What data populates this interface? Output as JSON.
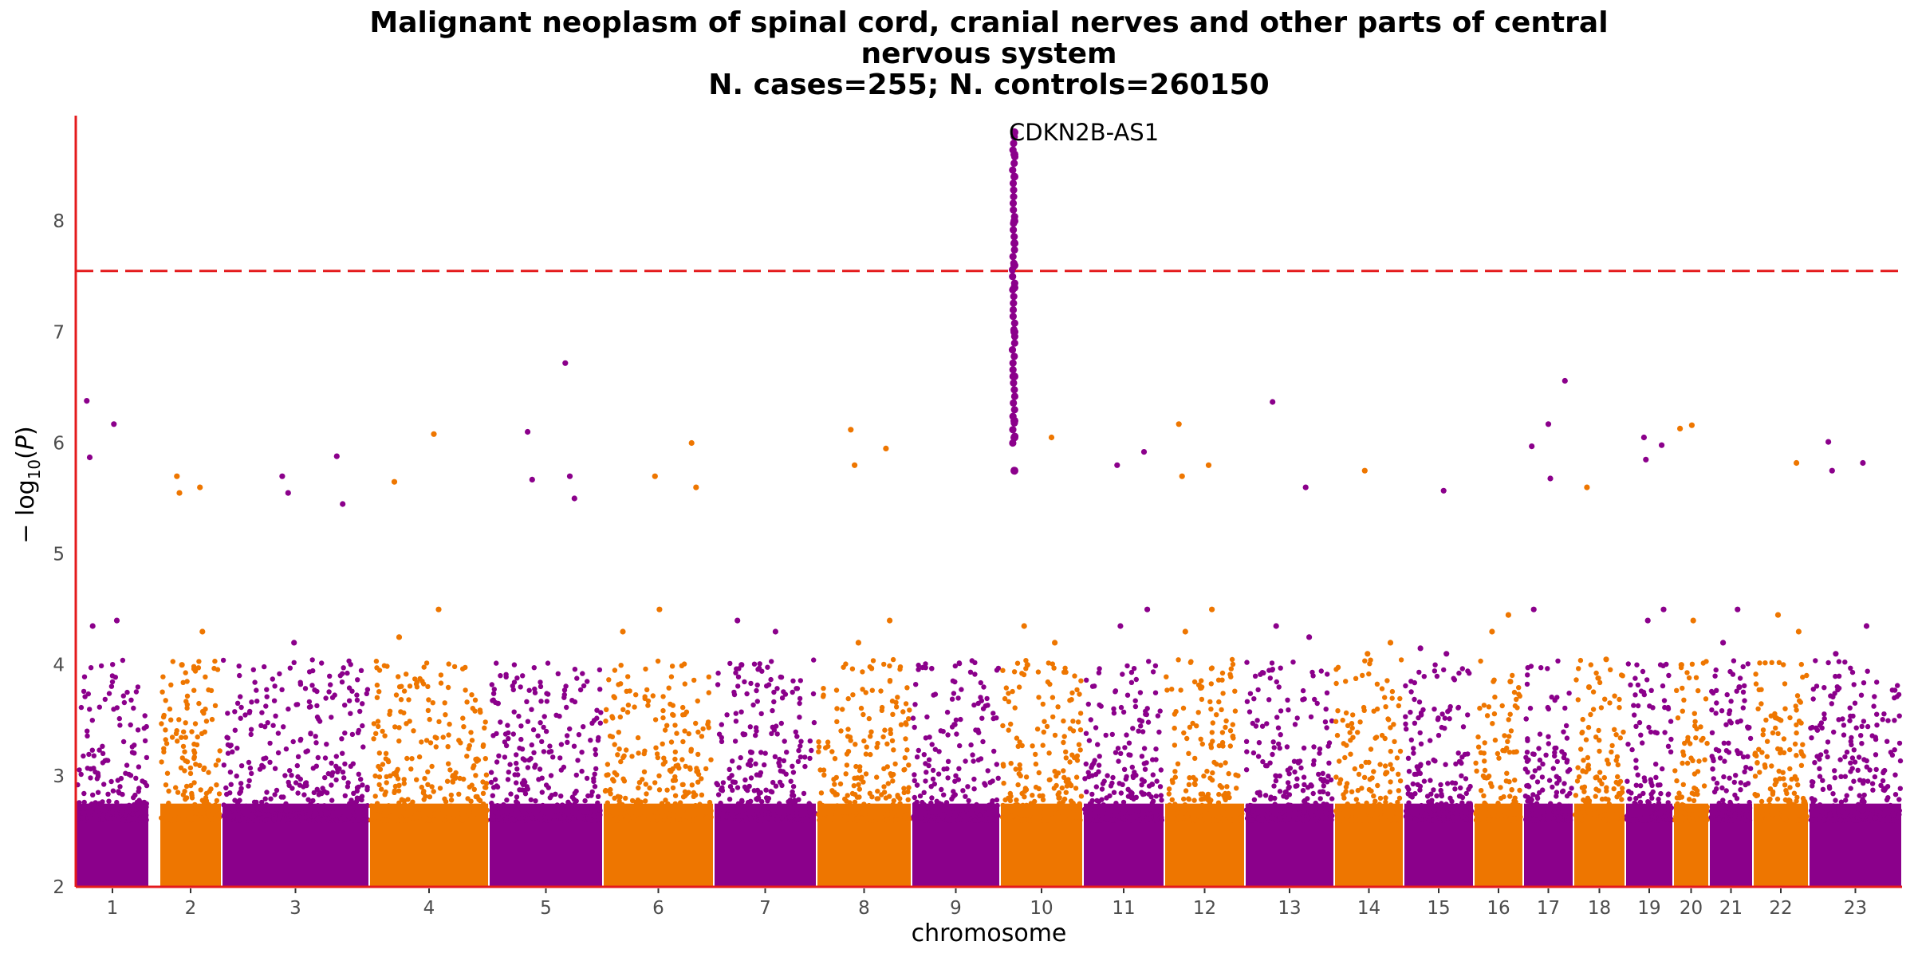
{
  "chart_data": {
    "type": "scatter",
    "subtype": "manhattan",
    "title_lines": [
      "Malignant neoplasm of spinal cord, cranial nerves and other parts of central",
      "nervous system",
      "N. cases=255; N. controls=260150"
    ],
    "xlabel": "chromosome",
    "ylabel": "−log10(P)",
    "ylim": [
      2,
      8.95
    ],
    "y_ticks": [
      2,
      3,
      4,
      5,
      6,
      7,
      8
    ],
    "significance_line": 7.55,
    "colors": {
      "odd": "#8b008b",
      "even": "#ee7600",
      "threshold": "#e41a1c",
      "axis": "#e41a1c"
    },
    "chromosomes": [
      {
        "label": "1",
        "peaks": [
          6.38,
          6.17,
          5.87,
          4.4,
          4.35
        ]
      },
      {
        "label": "2",
        "peaks": [
          5.7,
          5.6,
          5.55,
          4.3,
          4.0
        ]
      },
      {
        "label": "3",
        "peaks": [
          5.7,
          5.88,
          5.55,
          5.45,
          4.2
        ]
      },
      {
        "label": "4",
        "peaks": [
          6.08,
          5.65,
          4.5,
          4.25
        ]
      },
      {
        "label": "5",
        "peaks": [
          6.72,
          6.1,
          5.7,
          5.67,
          5.5
        ]
      },
      {
        "label": "6",
        "peaks": [
          6.0,
          5.7,
          5.6,
          4.5,
          4.3
        ]
      },
      {
        "label": "7",
        "peaks": [
          4.4,
          4.3,
          4.0
        ]
      },
      {
        "label": "8",
        "peaks": [
          6.12,
          5.95,
          5.8,
          4.4,
          4.2
        ]
      },
      {
        "label": "9",
        "peaks": [
          8.8,
          8.6,
          8.4,
          8.0,
          7.8,
          7.6,
          7.4,
          7.0,
          6.6,
          6.2,
          6.05,
          5.75
        ]
      },
      {
        "label": "10",
        "peaks": [
          6.05,
          4.35,
          4.2,
          4.0
        ]
      },
      {
        "label": "11",
        "peaks": [
          5.92,
          5.8,
          4.5,
          4.35
        ]
      },
      {
        "label": "12",
        "peaks": [
          6.17,
          5.8,
          5.7,
          4.5,
          4.3
        ]
      },
      {
        "label": "13",
        "peaks": [
          6.37,
          5.6,
          4.35,
          4.25
        ]
      },
      {
        "label": "14",
        "peaks": [
          5.75,
          4.2,
          4.1
        ]
      },
      {
        "label": "15",
        "peaks": [
          5.57,
          4.15,
          4.1
        ]
      },
      {
        "label": "16",
        "peaks": [
          4.45,
          4.3,
          3.85
        ]
      },
      {
        "label": "17",
        "peaks": [
          6.56,
          6.17,
          5.97,
          5.68,
          4.5
        ]
      },
      {
        "label": "18",
        "peaks": [
          5.6,
          4.05,
          3.8
        ]
      },
      {
        "label": "19",
        "peaks": [
          6.05,
          5.98,
          5.85,
          4.5,
          4.4
        ]
      },
      {
        "label": "20",
        "peaks": [
          6.16,
          6.13,
          4.4,
          4.0
        ]
      },
      {
        "label": "21",
        "peaks": [
          4.5,
          4.2,
          3.8
        ]
      },
      {
        "label": "22",
        "peaks": [
          5.82,
          4.45,
          4.3
        ]
      },
      {
        "label": "23",
        "peaks": [
          6.01,
          5.82,
          5.75,
          4.35,
          4.1
        ]
      }
    ],
    "annotations": [
      {
        "text": "CDKN2B-AS1",
        "chromosome": "9",
        "y": 8.8
      }
    ]
  }
}
